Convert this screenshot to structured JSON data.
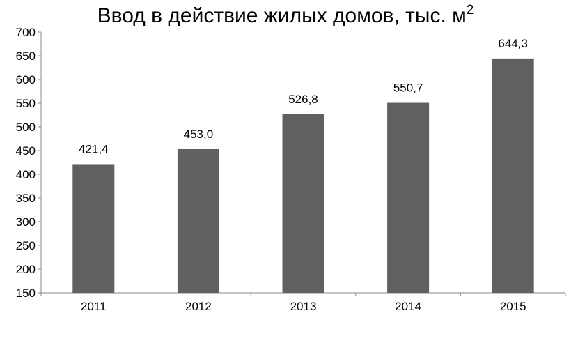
{
  "chart_data": {
    "type": "bar",
    "title": "Ввод в действие жилых домов, тыс. м",
    "title_superscript": "2",
    "categories": [
      "2011",
      "2012",
      "2013",
      "2014",
      "2015"
    ],
    "values": [
      421.4,
      453.0,
      526.8,
      550.7,
      644.3
    ],
    "value_labels": [
      "421,4",
      "453,0",
      "526,8",
      "550,7",
      "644,3"
    ],
    "y_ticks": [
      "150",
      "200",
      "250",
      "300",
      "350",
      "400",
      "450",
      "500",
      "550",
      "600",
      "650",
      "700"
    ],
    "ylim": [
      150,
      700
    ],
    "xlabel": "",
    "ylabel": "",
    "grid": false,
    "legend": "none",
    "bar_color": "#606060"
  }
}
